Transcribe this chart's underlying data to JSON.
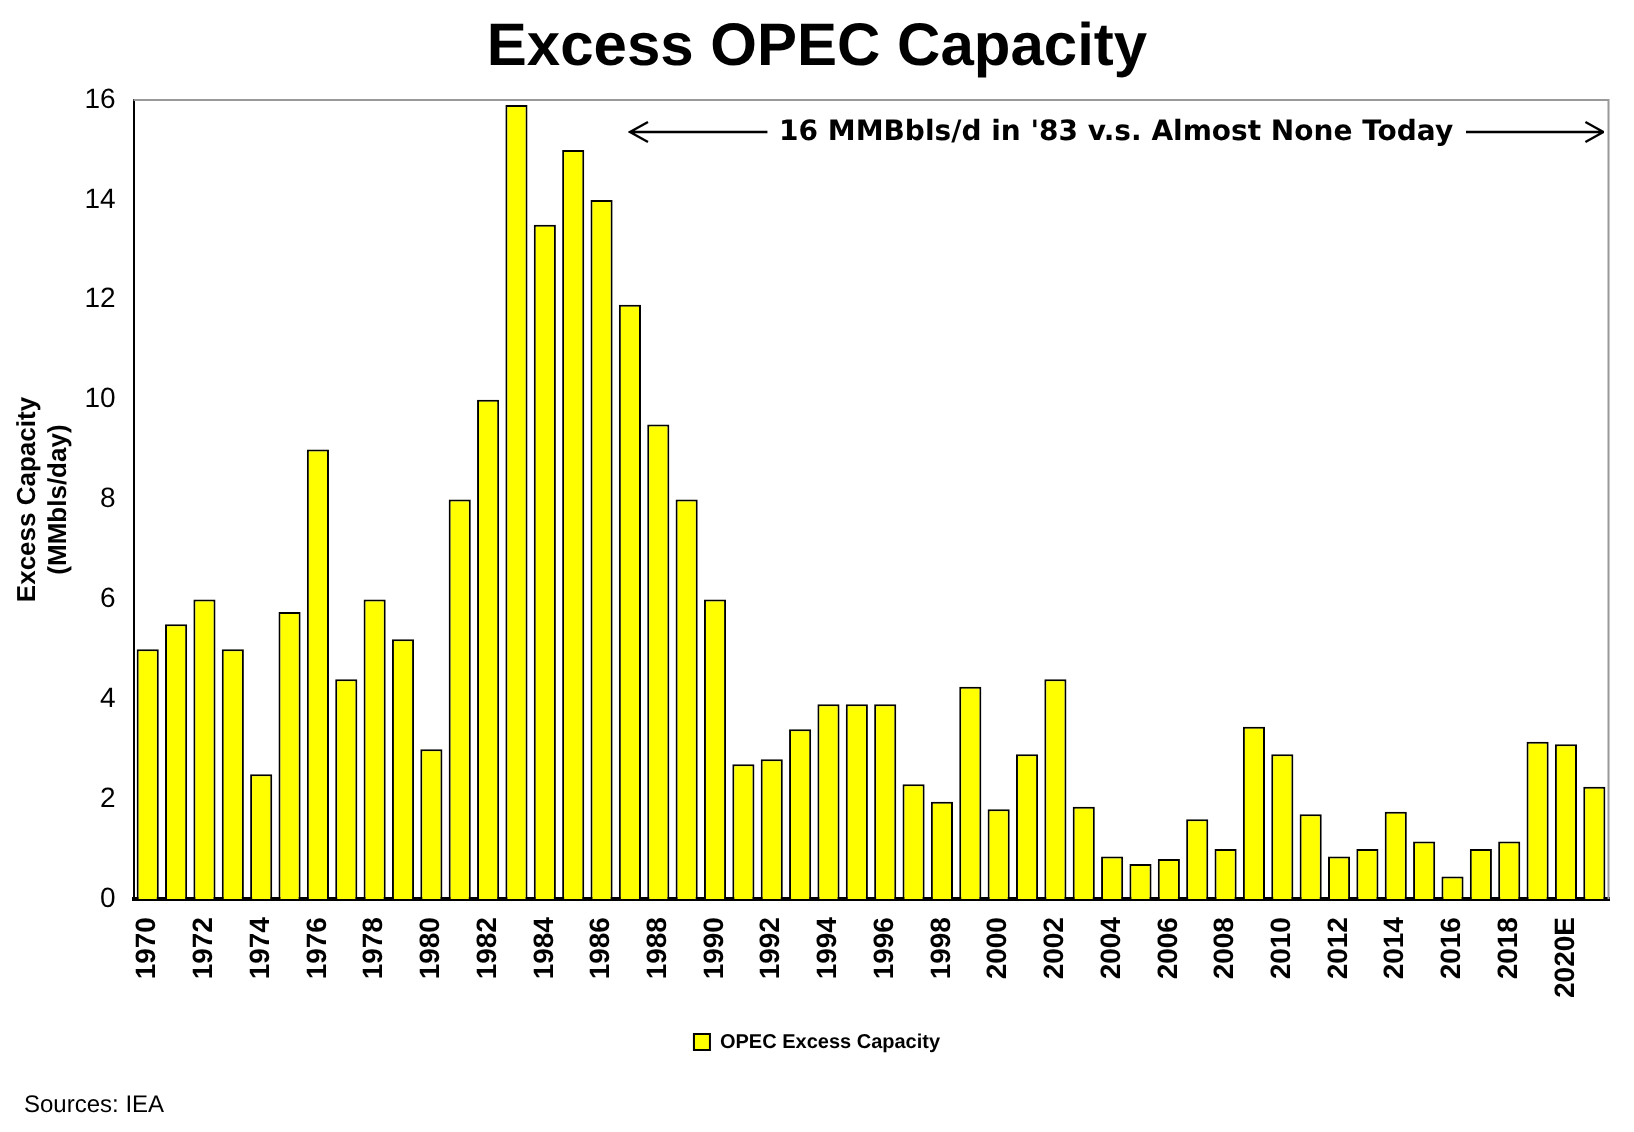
{
  "chart_data": {
    "type": "bar",
    "title": "Excess OPEC Capacity",
    "ylabel": "Excess Capacity\n(MMbls/day)",
    "categories": [
      "1970",
      null,
      "1972",
      null,
      "1974",
      null,
      "1976",
      null,
      "1978",
      null,
      "1980",
      null,
      "1982",
      null,
      "1984",
      null,
      "1986",
      null,
      "1988",
      null,
      "1990",
      null,
      "1992",
      null,
      "1994",
      null,
      "1996",
      null,
      "1998",
      null,
      "2000",
      null,
      "2002",
      null,
      "2004",
      null,
      "2006",
      null,
      "2008",
      null,
      "2010",
      null,
      "2012",
      null,
      "2014",
      null,
      "2016",
      null,
      "2018",
      null,
      "2020E",
      null
    ],
    "series": [
      {
        "name": "OPEC Excess Capacity",
        "color": "#ffff00",
        "values": [
          5,
          5.5,
          6,
          5,
          2.5,
          5.75,
          9,
          4.4,
          6,
          5.2,
          3,
          8,
          10,
          15.9,
          13.5,
          15,
          14,
          11.9,
          9.5,
          8,
          6,
          2.7,
          2.8,
          3.4,
          3.9,
          3.9,
          3.9,
          2.3,
          1.95,
          4.25,
          1.8,
          2.9,
          4.4,
          1.85,
          0.85,
          0.7,
          0.8,
          1.6,
          1.0,
          3.45,
          2.9,
          1.7,
          0.85,
          1.0,
          1.75,
          1.15,
          0.45,
          1.0,
          1.15,
          3.15,
          3.1,
          2.25
        ]
      }
    ],
    "ylim": [
      0,
      16
    ],
    "yticks": [
      0,
      2,
      4,
      6,
      8,
      10,
      12,
      14,
      16
    ],
    "legend": "bottom",
    "annotations": [
      "16 MMBbls/d in '83 v.s. Almost None Today",
      "Sources: IEA"
    ]
  }
}
